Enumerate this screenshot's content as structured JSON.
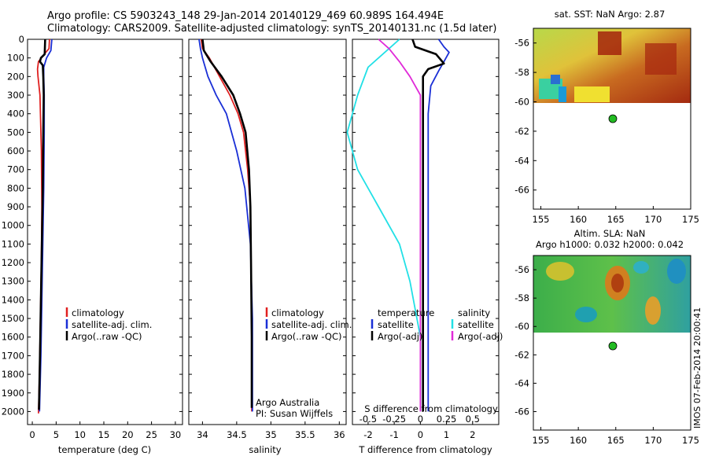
{
  "header": {
    "line1": "Argo profile: CS 5903243_148 29-Jan-2014 20140129_469 60.989S 164.494E",
    "line2": "Climatology: CARS2009. Satellite-adjusted climatology: synTS_20140131.nc (1.5d later)"
  },
  "credit": "IMOS 07-Feb-2014 20:00:41",
  "colors": {
    "climatology": "#e02020",
    "satellite": "#1a2fd6",
    "argo": "#000000",
    "s_satellite": "#22e0e6",
    "s_argo": "#e02ad8",
    "float_marker": "#22bb22"
  },
  "chart_data": [
    {
      "id": "temperature",
      "type": "line",
      "xlabel": "temperature (deg C)",
      "ylabel": "",
      "xlim": [
        -1,
        31.5
      ],
      "ylim": [
        2070,
        0
      ],
      "xticks": [
        0,
        5,
        10,
        15,
        20,
        25,
        30
      ],
      "yticks": [
        0,
        100,
        200,
        300,
        400,
        500,
        600,
        700,
        800,
        900,
        1000,
        1100,
        1200,
        1300,
        1400,
        1500,
        1600,
        1700,
        1800,
        1900,
        2000
      ],
      "legend": [
        "climatology",
        "satellite-adj. clim.",
        "Argo(..raw -QC)"
      ],
      "series": [
        {
          "name": "climatology",
          "color_key": "climatology",
          "x": [
            3.6,
            3.5,
            2.5,
            1.3,
            1.1,
            1.2,
            1.6,
            1.9,
            2.0,
            1.9,
            1.7,
            1.5,
            1.3
          ],
          "y": [
            0,
            50,
            80,
            120,
            160,
            200,
            300,
            600,
            900,
            1200,
            1500,
            1800,
            2010
          ]
        },
        {
          "name": "satellite-adj. clim.",
          "color_key": "satellite",
          "x": [
            4.1,
            3.9,
            3.0,
            2.4,
            2.4,
            2.5,
            2.5,
            2.4,
            2.2,
            2.0,
            1.8,
            1.6,
            1.5
          ],
          "y": [
            0,
            60,
            100,
            150,
            200,
            300,
            500,
            800,
            1100,
            1400,
            1700,
            1900,
            2000
          ]
        },
        {
          "name": "Argo(..raw -QC)",
          "color_key": "argo",
          "x": [
            2.7,
            2.6,
            1.8,
            1.6,
            2.2,
            2.3,
            2.4,
            2.3,
            2.2,
            2.0,
            1.8,
            1.6,
            1.4
          ],
          "y": [
            0,
            80,
            100,
            120,
            140,
            200,
            300,
            500,
            800,
            1100,
            1400,
            1700,
            1990
          ]
        }
      ]
    },
    {
      "id": "salinity",
      "type": "line",
      "xlabel": "salinity",
      "ylabel": "",
      "xlim": [
        33.8,
        36.1
      ],
      "ylim": [
        2070,
        0
      ],
      "xticks": [
        34,
        34.5,
        35,
        35.5,
        36
      ],
      "xtick_labels": [
        "34",
        "34.5",
        "35",
        "35.5",
        "36"
      ],
      "legend": [
        "climatology",
        "satellite-adj. clim.",
        "Argo(..raw -QC)"
      ],
      "annotations": [
        "Argo Australia",
        "PI: Susan Wijffels"
      ],
      "series": [
        {
          "name": "climatology",
          "color_key": "climatology",
          "x": [
            33.98,
            34.0,
            34.1,
            34.25,
            34.4,
            34.52,
            34.6,
            34.66,
            34.7,
            34.71,
            34.72,
            34.72
          ],
          "y": [
            0,
            50,
            100,
            200,
            300,
            400,
            500,
            700,
            900,
            1200,
            1600,
            2000
          ]
        },
        {
          "name": "satellite-adj. clim.",
          "color_key": "satellite",
          "x": [
            33.95,
            33.97,
            34.0,
            34.08,
            34.2,
            34.35,
            34.5,
            34.62,
            34.7,
            34.73,
            34.73
          ],
          "y": [
            0,
            50,
            100,
            200,
            300,
            400,
            600,
            800,
            1100,
            1500,
            2000
          ]
        },
        {
          "name": "Argo(..raw -QC)",
          "color_key": "argo",
          "x": [
            34.0,
            34.02,
            34.12,
            34.28,
            34.45,
            34.55,
            34.63,
            34.68,
            34.7,
            34.71,
            34.72,
            34.72
          ],
          "y": [
            0,
            60,
            120,
            200,
            300,
            400,
            500,
            700,
            900,
            1200,
            1600,
            1980
          ]
        }
      ]
    },
    {
      "id": "differences",
      "type": "line",
      "xlabel": "T difference from climatology",
      "top_label": "S difference from climatology",
      "xlim": [
        -2.6,
        3.0
      ],
      "ylim": [
        2070,
        0
      ],
      "xticks_bottom": [
        -2,
        -1,
        0,
        1,
        2
      ],
      "xticks_top": [
        -0.5,
        -0.25,
        0,
        0.25,
        0.5
      ],
      "xtick_top_labels": [
        "-0.5",
        "-0.25",
        "0",
        "0.25",
        "0.5"
      ],
      "legend_groups": [
        {
          "title": "temperature",
          "items": [
            "satellite",
            "Argo(-adj)"
          ]
        },
        {
          "title": "salinity",
          "items": [
            "satellite",
            "Argo(-adj)"
          ]
        }
      ],
      "series": [
        {
          "name": "temperature satellite",
          "color_key": "satellite",
          "x": [
            0.7,
            0.9,
            1.1,
            0.9,
            0.7,
            0.4,
            0.3,
            0.3,
            0.3,
            0.3,
            0.3,
            0.3
          ],
          "y": [
            0,
            40,
            70,
            120,
            170,
            250,
            400,
            700,
            1000,
            1400,
            1800,
            2000
          ]
        },
        {
          "name": "temperature Argo(-adj)",
          "color_key": "argo",
          "x": [
            -0.3,
            -0.2,
            0.3,
            0.6,
            0.9,
            0.3,
            0.1,
            0.1,
            0.1,
            0.1,
            0.1,
            0.1
          ],
          "y": [
            0,
            40,
            65,
            80,
            130,
            160,
            200,
            400,
            800,
            1200,
            1600,
            2000
          ]
        },
        {
          "name": "salinity satellite",
          "color_key": "s_satellite",
          "x": [
            -0.2,
            -0.3,
            -0.5,
            -0.6,
            -0.7,
            -0.6,
            -0.4,
            -0.2,
            -0.1,
            0.0,
            0.0
          ],
          "y": [
            0,
            50,
            150,
            300,
            500,
            700,
            900,
            1100,
            1300,
            1600,
            2000
          ]
        },
        {
          "name": "salinity Argo(-adj)",
          "color_key": "s_argo",
          "x": [
            -0.4,
            -0.3,
            -0.2,
            -0.1,
            0.0,
            0.0,
            0.0,
            0.0
          ],
          "y": [
            0,
            50,
            120,
            200,
            300,
            600,
            1000,
            2000
          ]
        }
      ]
    },
    {
      "id": "sst_map",
      "type": "heatmap",
      "title": "sat. SST: NaN Argo: 2.87",
      "xlim": [
        154,
        175
      ],
      "ylim": [
        -67.3,
        -55
      ],
      "xticks": [
        155,
        160,
        165,
        170,
        175
      ],
      "yticks": [
        -56,
        -58,
        -60,
        -62,
        -64,
        -66
      ],
      "float_position": {
        "lon": 164.494,
        "lat": -60.989
      }
    },
    {
      "id": "sla_map",
      "type": "heatmap",
      "title": "Altim. SLA: NaN",
      "subtitle": "Argo h1000: 0.032 h2000: 0.042",
      "xlim": [
        154,
        175
      ],
      "ylim": [
        -67.3,
        -55
      ],
      "xticks": [
        155,
        160,
        165,
        170,
        175
      ],
      "yticks": [
        -56,
        -58,
        -60,
        -62,
        -64,
        -66
      ],
      "float_position": {
        "lon": 164.494,
        "lat": -60.989
      }
    }
  ]
}
